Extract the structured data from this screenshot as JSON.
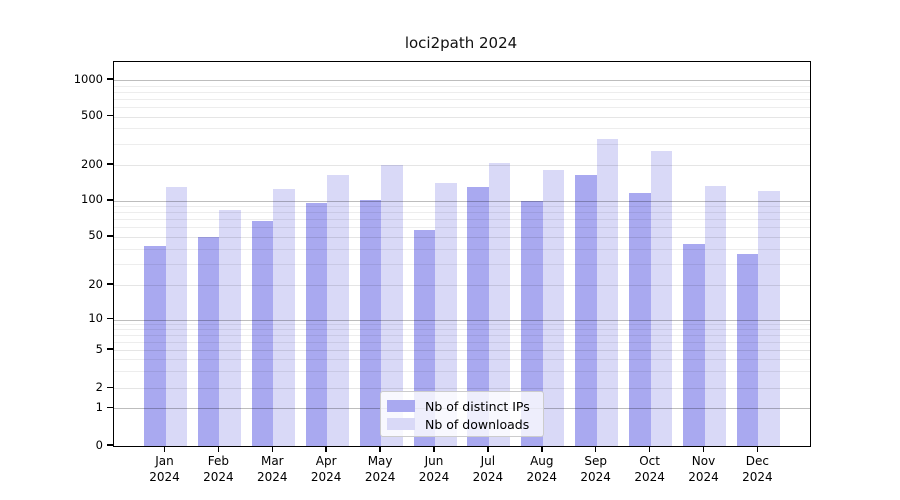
{
  "figure_title": "loci2path 2024",
  "chart_data": {
    "type": "bar",
    "title": "loci2path 2024",
    "categories": [
      "Jan",
      "Feb",
      "Mar",
      "Apr",
      "May",
      "Jun",
      "Jul",
      "Aug",
      "Sep",
      "Oct",
      "Nov",
      "Dec"
    ],
    "category_year": "2024",
    "series": [
      {
        "name": "Nb of distinct IPs",
        "color": "#a9a9f0",
        "values": [
          42,
          50,
          68,
          95,
          101,
          57,
          131,
          100,
          166,
          117,
          44,
          36
        ]
      },
      {
        "name": "Nb of downloads",
        "color": "#d9d9f7",
        "values": [
          130,
          83,
          125,
          165,
          200,
          140,
          207,
          183,
          330,
          260,
          133,
          122
        ]
      }
    ],
    "xlabel": "",
    "ylabel": "",
    "y_axis": {
      "scale": "symlog",
      "ticks": [
        0,
        1,
        2,
        5,
        10,
        20,
        50,
        100,
        200,
        500,
        1000
      ],
      "minor_ticks": [
        3,
        4,
        6,
        7,
        8,
        9,
        30,
        40,
        60,
        70,
        80,
        90,
        300,
        400,
        600,
        700,
        800,
        900
      ],
      "ylim": [
        0,
        1300
      ],
      "scale_anchors_value_to_py": [
        [
          0,
          445
        ],
        [
          1,
          407.3
        ],
        [
          2,
          387.3
        ],
        [
          5,
          349
        ],
        [
          10,
          318.5
        ],
        [
          20,
          284
        ],
        [
          50,
          235.8
        ],
        [
          100,
          199.8
        ],
        [
          200,
          164
        ],
        [
          500,
          115.7
        ],
        [
          1000,
          79
        ]
      ]
    },
    "grid": true,
    "legend_position": "lower center inside plot"
  },
  "legend": {
    "entry_ips": "Nb of distinct IPs",
    "entry_downloads": "Nb of downloads"
  },
  "colors": {
    "bar_dark": "#a9a9f0",
    "bar_light": "#d9d9f7",
    "axis": "#000000",
    "background": "#ffffff"
  }
}
